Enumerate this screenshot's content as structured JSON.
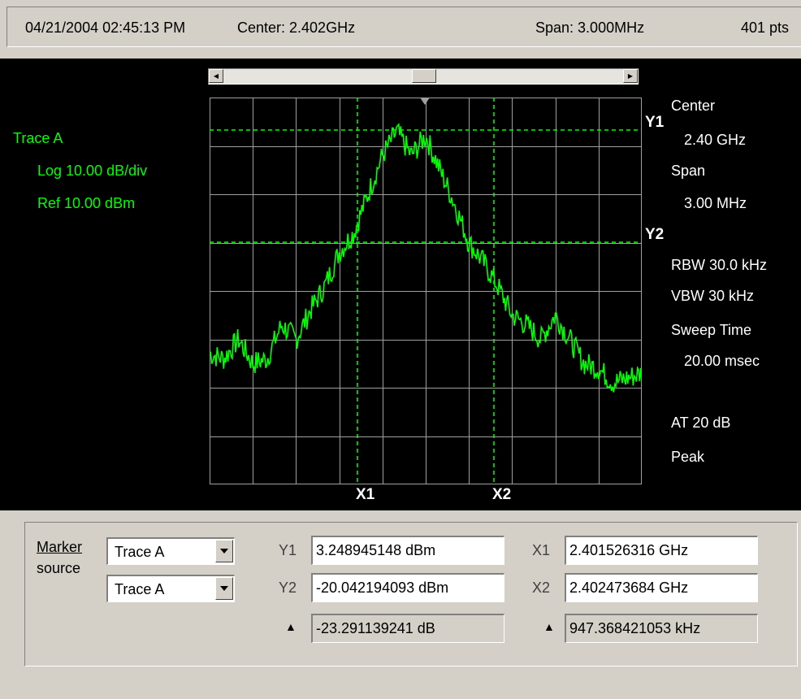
{
  "status": {
    "datetime": "04/21/2004 02:45:13 PM",
    "center": "Center: 2.402GHz",
    "span": "Span: 3.000MHz",
    "points": "401 pts"
  },
  "trace_info": {
    "name": "Trace A",
    "scale": "Log 10.00 dB/div",
    "ref": "Ref 10.00 dBm"
  },
  "settings": {
    "center_label": "Center",
    "center_value": "2.40 GHz",
    "span_label": "Span",
    "span_value": "3.00 MHz",
    "rbw": "RBW 30.0 kHz",
    "vbw": "VBW 30 kHz",
    "sweep_label": "Sweep Time",
    "sweep_value": "20.00 msec",
    "atten": "AT 20 dB",
    "detector": "Peak"
  },
  "markers": {
    "y1": "Y1",
    "y2": "Y2",
    "x1": "X1",
    "x2": "X2"
  },
  "colors": {
    "trace": "#00ff00",
    "grid": "#a0a0a0",
    "marker_line": "#00ff00",
    "background": "#000000"
  },
  "panel": {
    "marker_source_line1": "Marker",
    "marker_source_line2": "source",
    "source1": "Trace A",
    "source2": "Trace A",
    "y1_label": "Y1",
    "y1_value": "3.248945148 dBm",
    "y2_label": "Y2",
    "y2_value": "-20.042194093 dBm",
    "dy_value": "-23.291139241 dB",
    "x1_label": "X1",
    "x1_value": "2.401526316 GHz",
    "x2_label": "X2",
    "x2_value": "2.402473684 GHz",
    "dx_value": "947.368421053 kHz"
  },
  "chart_data": {
    "type": "line",
    "x_start_hz": 2400500000,
    "x_stop_hz": 2403500000,
    "ylim": [
      -70,
      10
    ],
    "grid": true,
    "series": [
      {
        "name": "Trace A",
        "x_mhz_offset": [
          0.0,
          0.1,
          0.2,
          0.3,
          0.4,
          0.5,
          0.6,
          0.7,
          0.8,
          0.9,
          1.0,
          1.1,
          1.2,
          1.3,
          1.4,
          1.5,
          1.6,
          1.7,
          1.8,
          1.9,
          2.0,
          2.1,
          2.2,
          2.3,
          2.4,
          2.5,
          2.6,
          2.7,
          2.8,
          2.9,
          3.0
        ],
        "values_dbm": [
          -43,
          -44,
          -40,
          -45,
          -44,
          -37,
          -40,
          -34,
          -29,
          -22,
          -18,
          -10,
          -2,
          3,
          -2,
          2,
          -5,
          -12,
          -20,
          -24,
          -29,
          -35,
          -37,
          -40,
          -35,
          -40,
          -45,
          -46,
          -49,
          -48,
          -47
        ]
      }
    ],
    "markers": {
      "Y1": 3.248945148,
      "Y2": -20.042194093,
      "X1_ghz": 2.401526316,
      "X2_ghz": 2.402473684
    }
  }
}
